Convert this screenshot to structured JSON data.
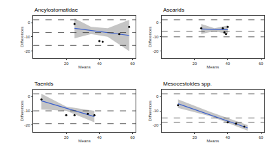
{
  "chart_data": [
    {
      "type": "scatter",
      "title": "Ancylostomatidae",
      "x_label": "Means",
      "y_label": "Differences",
      "x": [
        25,
        40,
        42,
        52,
        58
      ],
      "values": [
        -1,
        -13,
        -13.5,
        -8,
        -3
      ],
      "fit": {
        "x": [
          25,
          35,
          45,
          58
        ],
        "y": [
          -4,
          -5.5,
          -7,
          -9
        ],
        "lower": [
          -11,
          -8,
          -10,
          -20
        ],
        "upper": [
          3,
          -3,
          -4,
          2
        ]
      },
      "reference_lines": [
        2,
        -7,
        -16
      ],
      "xlim": [
        0,
        62
      ],
      "ylim": [
        -25,
        5
      ],
      "xticks": [
        20,
        40,
        60
      ],
      "yticks": [
        -20,
        -10,
        0
      ]
    },
    {
      "type": "scatter",
      "title": "Ascarids",
      "x_label": "Means",
      "y_label": "Differences",
      "x": [
        24,
        37,
        38,
        39,
        40
      ],
      "values": [
        -4,
        -4,
        -7,
        -8,
        -3
      ],
      "fit": {
        "x": [
          24,
          32,
          40
        ],
        "y": [
          -4.5,
          -4.8,
          -5
        ],
        "lower": [
          -8,
          -6,
          -8
        ],
        "upper": [
          -1,
          -4,
          -2
        ]
      },
      "reference_lines": [
        2,
        -6,
        -10
      ],
      "xlim": [
        0,
        62
      ],
      "ylim": [
        -25,
        5
      ],
      "xticks": [
        20,
        40,
        60
      ],
      "yticks": [
        -20,
        -10,
        0
      ]
    },
    {
      "type": "scatter",
      "title": "Taenids",
      "x_label": "Means",
      "y_label": "Differences",
      "x": [
        5,
        20,
        25,
        33,
        37
      ],
      "values": [
        -2,
        -13,
        -13,
        -12,
        -13
      ],
      "fit": {
        "x": [
          5,
          20,
          37
        ],
        "y": [
          -3,
          -8,
          -14
        ],
        "lower": [
          -9,
          -10,
          -18
        ],
        "upper": [
          2,
          -7,
          -10
        ]
      },
      "reference_lines": [
        2,
        -10,
        -19
      ],
      "xlim": [
        0,
        62
      ],
      "ylim": [
        -25,
        5
      ],
      "xticks": [
        20,
        40,
        60
      ],
      "yticks": [
        -20,
        -10,
        0
      ]
    },
    {
      "type": "scatter",
      "title": "Mesocestoides spp.",
      "x_label": "Means",
      "y_label": "Differences",
      "x": [
        10,
        40,
        45,
        50
      ],
      "values": [
        -6,
        -18,
        -19,
        -21
      ],
      "fit": {
        "x": [
          10,
          30,
          52
        ],
        "y": [
          -5,
          -13,
          -22
        ],
        "lower": [
          -8,
          -14,
          -24
        ],
        "upper": [
          -2,
          -11,
          -20
        ]
      },
      "reference_lines": [
        2,
        -15,
        -18
      ],
      "xlim": [
        0,
        62
      ],
      "ylim": [
        -25,
        5
      ],
      "xticks": [
        20,
        40,
        60
      ],
      "yticks": [
        -20,
        -10,
        0
      ]
    }
  ]
}
